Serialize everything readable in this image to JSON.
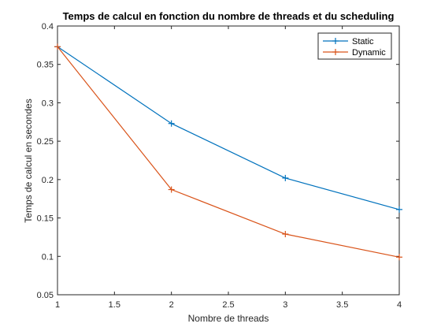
{
  "chart_data": {
    "type": "line",
    "title": "Temps de calcul en fonction du nombre de threads et du scheduling",
    "xlabel": "Nombre de threads",
    "ylabel": "Temps de calcul en secondes",
    "xlim": [
      1,
      4
    ],
    "ylim": [
      0.05,
      0.4
    ],
    "xticks": [
      1,
      1.5,
      2,
      2.5,
      3,
      3.5,
      4
    ],
    "xtick_labels": [
      "1",
      "1.5",
      "2",
      "2.5",
      "3",
      "3.5",
      "4"
    ],
    "yticks": [
      0.05,
      0.1,
      0.15,
      0.2,
      0.25,
      0.3,
      0.35,
      0.4
    ],
    "ytick_labels": [
      "0.05",
      "0.1",
      "0.15",
      "0.2",
      "0.25",
      "0.3",
      "0.35",
      "0.4"
    ],
    "grid": false,
    "legend_position": "top-right",
    "marker": "+",
    "series": [
      {
        "name": "Static",
        "color": "#0072BD",
        "x": [
          1,
          2,
          3,
          4
        ],
        "y": [
          0.373,
          0.273,
          0.202,
          0.161
        ]
      },
      {
        "name": "Dynamic",
        "color": "#D95319",
        "x": [
          1,
          2,
          3,
          4
        ],
        "y": [
          0.373,
          0.187,
          0.129,
          0.099
        ]
      }
    ]
  }
}
